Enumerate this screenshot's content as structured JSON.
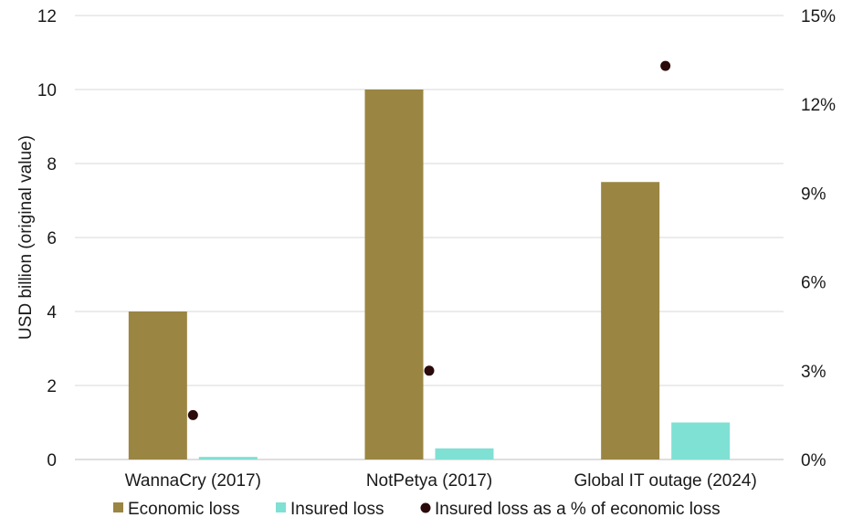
{
  "chart_data": {
    "type": "bar",
    "categories": [
      "WannaCry (2017)",
      "NotPetya (2017)",
      "Global IT outage (2024)"
    ],
    "series": [
      {
        "name": "Economic loss",
        "kind": "bar",
        "axis": "left",
        "color": "#9a8542",
        "values": [
          4,
          10,
          7.5
        ]
      },
      {
        "name": "Insured loss",
        "kind": "bar",
        "axis": "left",
        "color": "#7fe0d4",
        "values": [
          0.07,
          0.3,
          1.0
        ]
      },
      {
        "name": "Insured loss as a % of economic loss",
        "kind": "scatter",
        "axis": "right",
        "color": "#2a0a0a",
        "values": [
          1.5,
          3.0,
          13.3
        ]
      }
    ],
    "ylabel": "USD billion (original value)",
    "ylim": [
      0,
      12
    ],
    "yticks": [
      "0",
      "2",
      "4",
      "6",
      "8",
      "10",
      "12"
    ],
    "y2lim": [
      0,
      15
    ],
    "y2ticks": [
      "0%",
      "3%",
      "6%",
      "9%",
      "12%",
      "15%"
    ],
    "grid": true,
    "legend_position": "bottom"
  }
}
